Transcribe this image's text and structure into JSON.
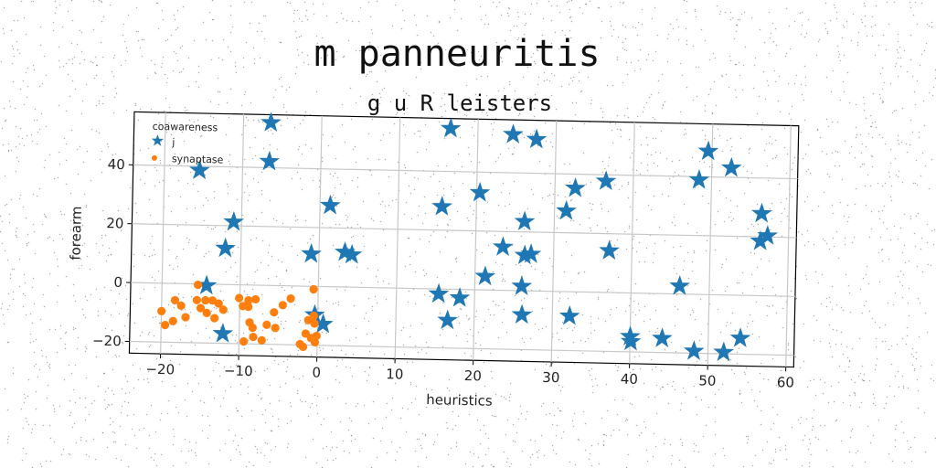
{
  "chart_data": {
    "type": "scatter",
    "suptitle": "m panneuritis",
    "title": "g u R leisters",
    "xlabel": "heuristics",
    "ylabel": "forearm",
    "xlim": [
      -24,
      61
    ],
    "ylim": [
      -24,
      58
    ],
    "xticks": [
      -20,
      -10,
      0,
      10,
      20,
      30,
      40,
      50,
      60
    ],
    "yticks": [
      -20,
      0,
      20,
      40
    ],
    "grid": true,
    "legend": {
      "title": "coawareness",
      "location": "upper-left"
    },
    "series": [
      {
        "name": "j",
        "marker": "star",
        "color": "#1f77b4",
        "points": [
          [
            -6.5,
            55.3
          ],
          [
            -15.5,
            38.6
          ],
          [
            -6.6,
            42.1
          ],
          [
            -11,
            21.3
          ],
          [
            -12,
            12.3
          ],
          [
            1.3,
            27.6
          ],
          [
            -1,
            11
          ],
          [
            3.3,
            11.8
          ],
          [
            4.2,
            11
          ],
          [
            -14.3,
            -0.5
          ],
          [
            -12.1,
            -16.7
          ],
          [
            -0.4,
            -9.7
          ],
          [
            0.7,
            -12.8
          ],
          [
            16.5,
            54.6
          ],
          [
            24.5,
            53
          ],
          [
            27.5,
            51.5
          ],
          [
            20.4,
            33
          ],
          [
            15.6,
            28
          ],
          [
            23.5,
            14.7
          ],
          [
            21.3,
            4.6
          ],
          [
            15.4,
            -1.7
          ],
          [
            18.1,
            -2.9
          ],
          [
            16.6,
            -10.6
          ],
          [
            26.2,
            23.5
          ],
          [
            26.3,
            12
          ],
          [
            27.1,
            12.5
          ],
          [
            26,
            1.5
          ],
          [
            26.1,
            -8.2
          ],
          [
            32.6,
            35.2
          ],
          [
            36.5,
            37.8
          ],
          [
            31.5,
            27.4
          ],
          [
            37.1,
            14.2
          ],
          [
            32.2,
            -8.3
          ],
          [
            40,
            -14.8
          ],
          [
            40.1,
            -16.5
          ],
          [
            44.1,
            -15.2
          ],
          [
            46.2,
            2.7
          ],
          [
            48.2,
            -19.3
          ],
          [
            48.4,
            38.9
          ],
          [
            49.5,
            48.7
          ],
          [
            52.5,
            43.2
          ],
          [
            52,
            -19.5
          ],
          [
            54.1,
            -14.6
          ],
          [
            56.5,
            27.9
          ],
          [
            56.4,
            18.5
          ],
          [
            57.3,
            20.4
          ]
        ]
      },
      {
        "name": "synaptase",
        "marker": "circle",
        "color": "#ff7f0e",
        "points": [
          [
            -20,
            -9.5
          ],
          [
            -19.5,
            -14.2
          ],
          [
            -18.5,
            -12.8
          ],
          [
            -18.3,
            -5.7
          ],
          [
            -17.5,
            -7.5
          ],
          [
            -16.9,
            -11.4
          ],
          [
            -15.4,
            -0.3
          ],
          [
            -15.5,
            -5.5
          ],
          [
            -15,
            -8.2
          ],
          [
            -14.2,
            -9.8
          ],
          [
            -14.4,
            -5.5
          ],
          [
            -13.5,
            -5.5
          ],
          [
            -13.2,
            -11.5
          ],
          [
            -12.7,
            -6.5
          ],
          [
            -12.1,
            -8.6
          ],
          [
            -10.1,
            -4.5
          ],
          [
            -9.6,
            -7.2
          ],
          [
            -9.4,
            -19.2
          ],
          [
            -8.9,
            -5.2
          ],
          [
            -8.9,
            -7.4
          ],
          [
            -8.7,
            -12.7
          ],
          [
            -8.3,
            -14.5
          ],
          [
            -8.2,
            -17.6
          ],
          [
            -8,
            -4.8
          ],
          [
            -7.1,
            -18.7
          ],
          [
            -6.5,
            -13.4
          ],
          [
            -5.6,
            -9.1
          ],
          [
            -5.4,
            -14.4
          ],
          [
            -4.5,
            -6.6
          ],
          [
            -3.5,
            -4.3
          ],
          [
            -2.2,
            -19.7
          ],
          [
            -1.8,
            -20.6
          ],
          [
            -1.5,
            -16.1
          ],
          [
            -1.2,
            -11.5
          ],
          [
            -0.8,
            -17.6
          ],
          [
            -0.6,
            -1
          ],
          [
            -0.5,
            -10
          ],
          [
            -0.4,
            -12.6
          ],
          [
            -0.3,
            -19
          ],
          [
            -0.1,
            -16.8
          ]
        ]
      }
    ]
  }
}
